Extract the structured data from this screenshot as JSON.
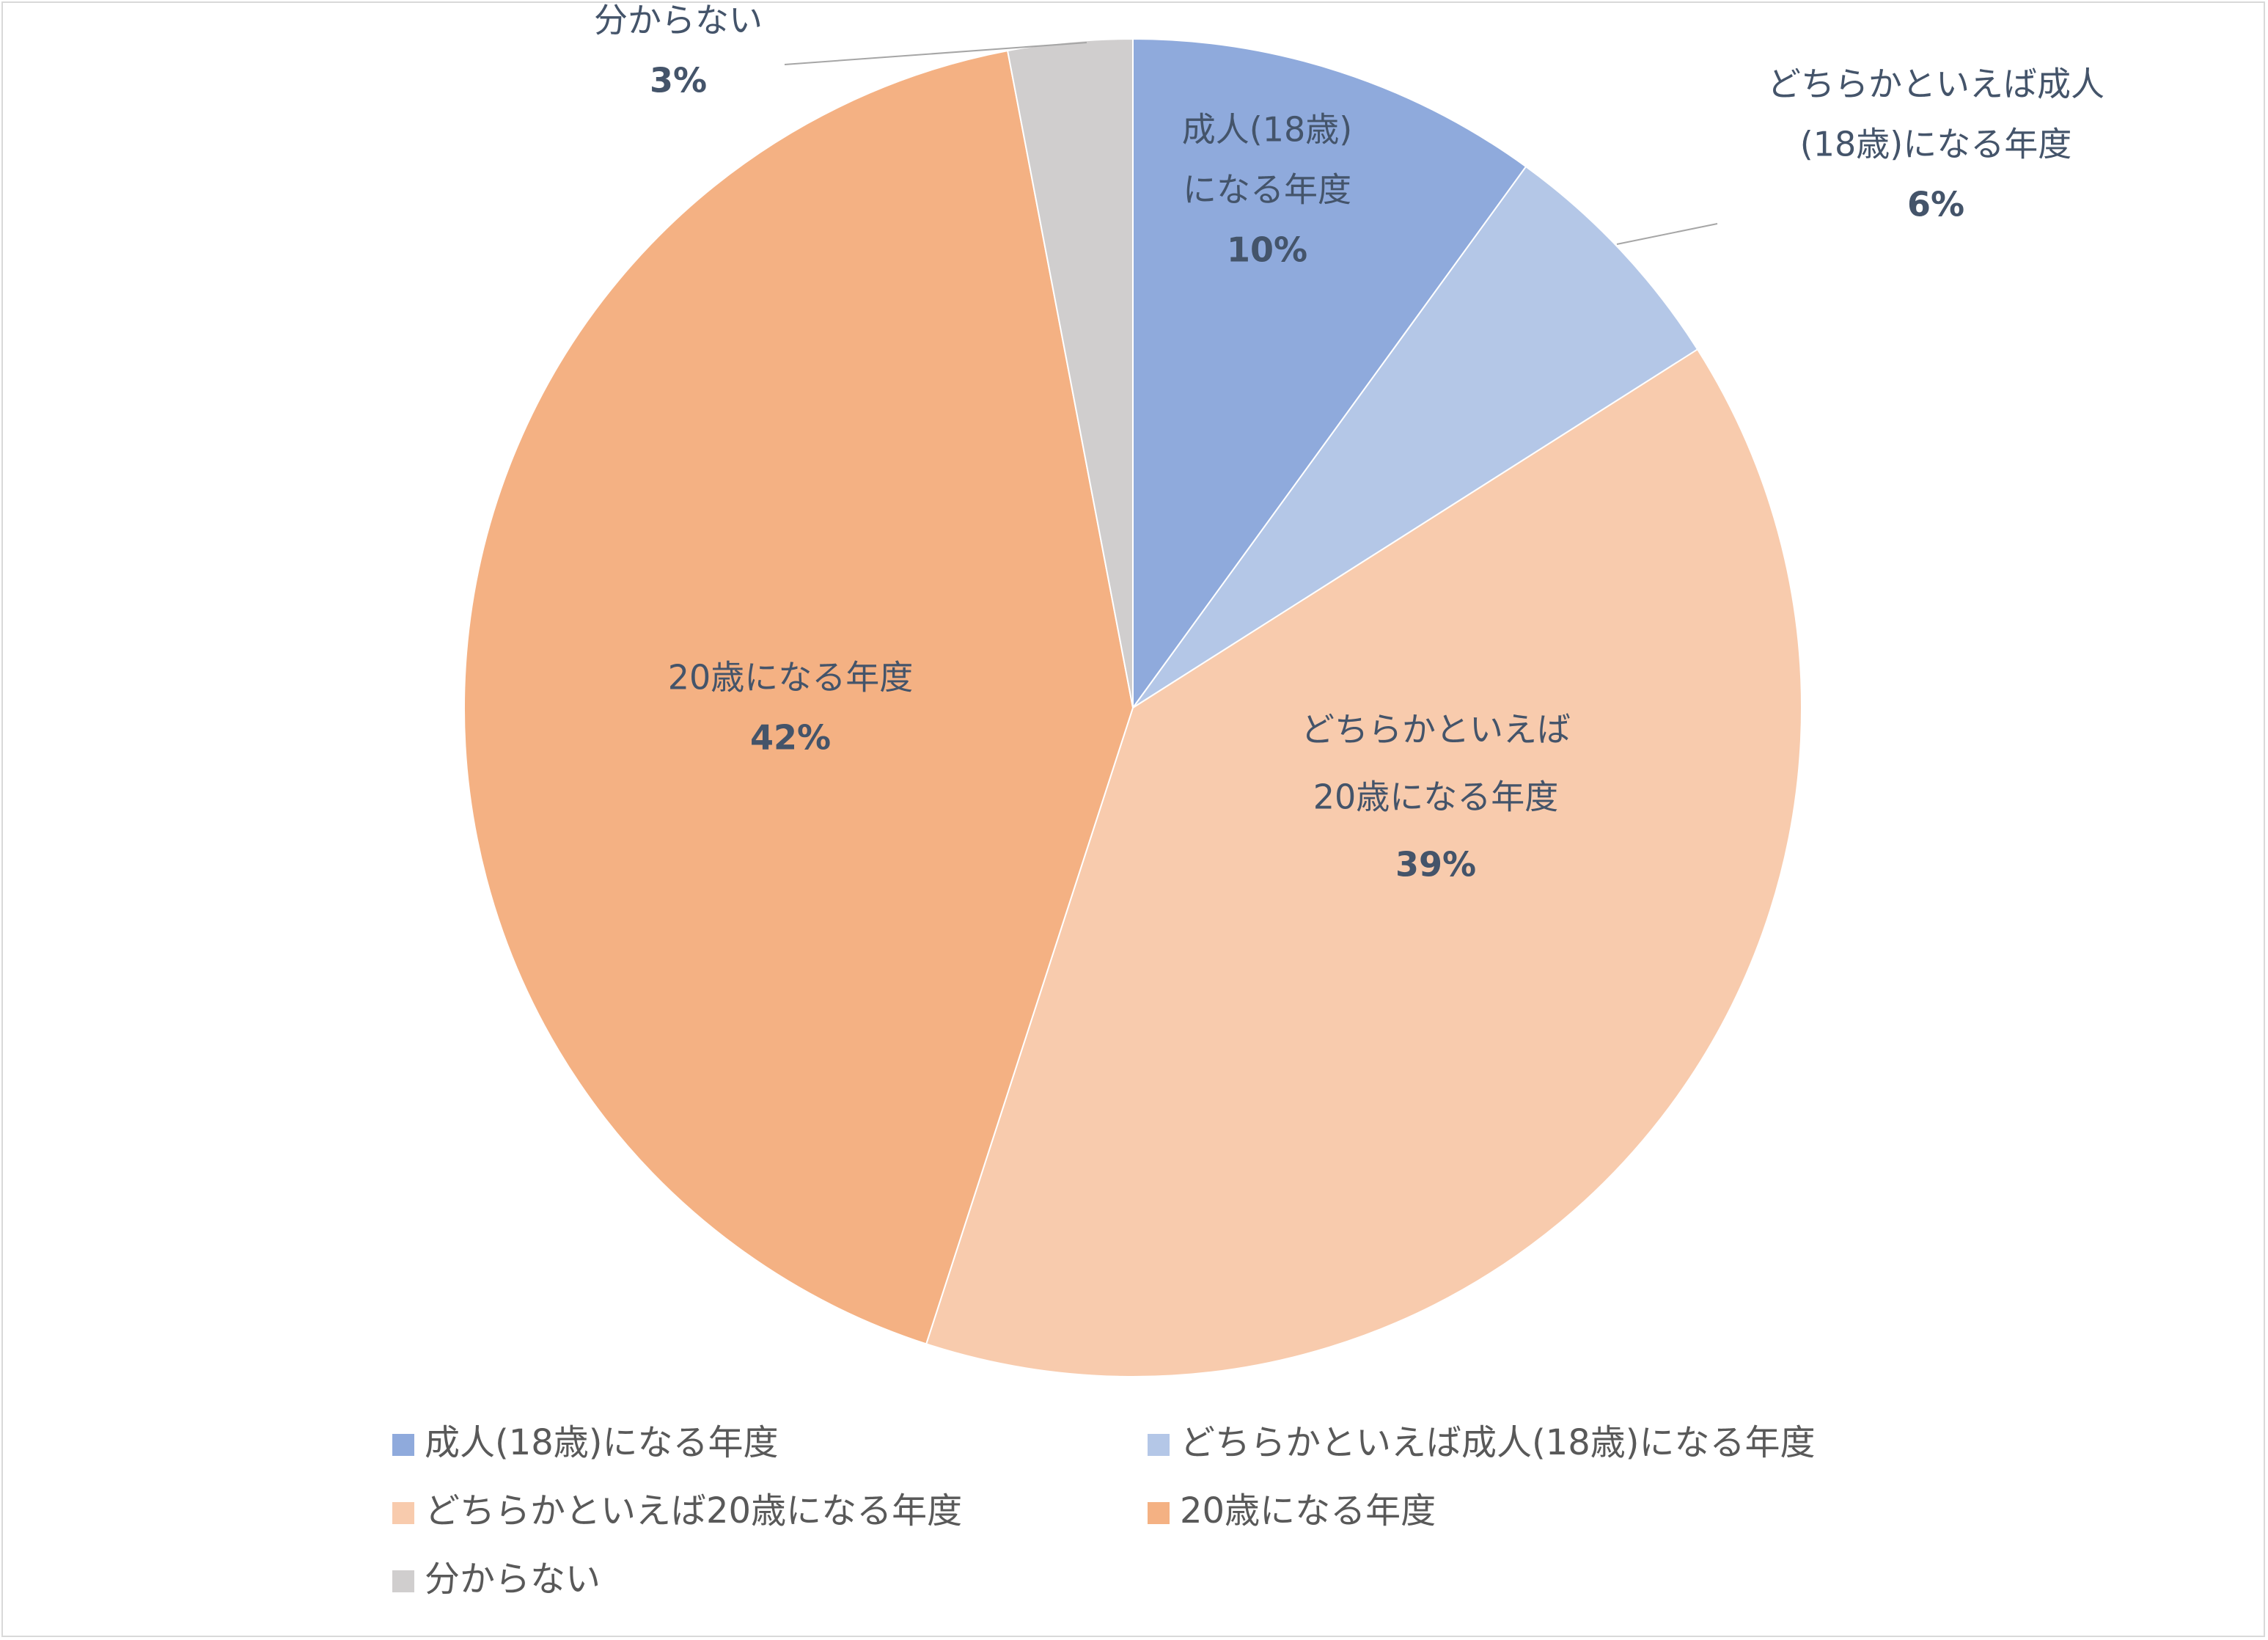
{
  "chart_data": {
    "type": "pie",
    "title": "",
    "categories": [
      "成人(18歳)になる年度",
      "どちらかといえば成人(18歳)になる年度",
      "どちらかといえば20歳になる年度",
      "20歳になる年度",
      "分からない"
    ],
    "values": [
      10,
      6,
      39,
      42,
      3
    ],
    "percent_labels": [
      "10%",
      "6%",
      "39%",
      "42%",
      "3%"
    ],
    "slice_labels": [
      [
        "成人(18歳)",
        "になる年度"
      ],
      [
        "どちらかといえば成人",
        "(18歳)になる年度"
      ],
      [
        "どちらかといえば",
        "20歳になる年度"
      ],
      [
        "20歳になる年度"
      ],
      [
        "分からない"
      ]
    ],
    "colors": [
      "#8faadc",
      "#b4c7e7",
      "#f8cbad",
      "#f4b183",
      "#d0cece"
    ],
    "label_text_color": "#44546a",
    "legend_text_color": "#595959",
    "legend_position": "bottom",
    "start_angle_deg": 0,
    "direction": "clockwise"
  }
}
